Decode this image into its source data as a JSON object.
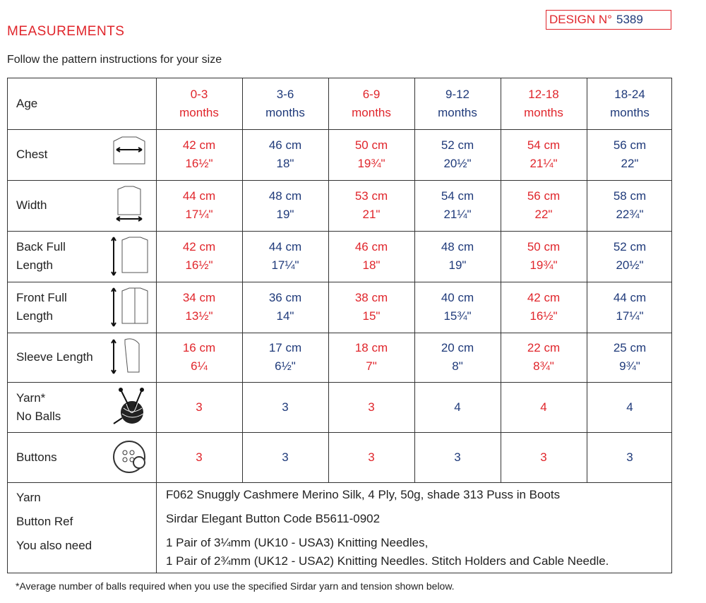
{
  "header": {
    "title": "MEASUREMENTS",
    "design_label": "DESIGN N°",
    "design_number": "5389"
  },
  "intro": "Follow the pattern instructions for your size",
  "table": {
    "corner": "Age",
    "columns": [
      [
        "0-3",
        "months"
      ],
      [
        "3-6",
        "months"
      ],
      [
        "6-9",
        "months"
      ],
      [
        "9-12",
        "months"
      ],
      [
        "12-18",
        "months"
      ],
      [
        "18-24",
        "months"
      ]
    ],
    "rows": [
      {
        "label": [
          "Chest"
        ],
        "values": [
          [
            "42 cm",
            "16½\""
          ],
          [
            "46 cm",
            "18\""
          ],
          [
            "50 cm",
            "19¾\""
          ],
          [
            "52 cm",
            "20½\""
          ],
          [
            "54 cm",
            "21¼\""
          ],
          [
            "56 cm",
            "22\""
          ]
        ]
      },
      {
        "label": [
          "Width"
        ],
        "values": [
          [
            "44 cm",
            "17¼\""
          ],
          [
            "48 cm",
            "19\""
          ],
          [
            "53 cm",
            "21\""
          ],
          [
            "54 cm",
            "21¼\""
          ],
          [
            "56 cm",
            "22\""
          ],
          [
            "58 cm",
            "22¾\""
          ]
        ]
      },
      {
        "label": [
          "Back Full",
          "Length"
        ],
        "values": [
          [
            "42 cm",
            "16½\""
          ],
          [
            "44 cm",
            "17¼\""
          ],
          [
            "46 cm",
            "18\""
          ],
          [
            "48 cm",
            "19\""
          ],
          [
            "50 cm",
            "19¾\""
          ],
          [
            "52 cm",
            "20½\""
          ]
        ]
      },
      {
        "label": [
          "Front Full",
          "Length"
        ],
        "values": [
          [
            "34 cm",
            "13½\""
          ],
          [
            "36 cm",
            "14\""
          ],
          [
            "38 cm",
            "15\""
          ],
          [
            "40 cm",
            "15¾\""
          ],
          [
            "42 cm",
            "16½\""
          ],
          [
            "44 cm",
            "17¼\""
          ]
        ]
      },
      {
        "label": [
          "Sleeve Length"
        ],
        "values": [
          [
            "16 cm",
            "6¼"
          ],
          [
            "17 cm",
            "6½\""
          ],
          [
            "18 cm",
            "7\""
          ],
          [
            "20 cm",
            "8\""
          ],
          [
            "22 cm",
            "8¾\""
          ],
          [
            "25 cm",
            "9¾\""
          ]
        ]
      },
      {
        "label": [
          "Yarn*",
          "No Balls"
        ],
        "values": [
          [
            3
          ],
          [
            3
          ],
          [
            3
          ],
          [
            4
          ],
          [
            4
          ],
          [
            4
          ]
        ]
      },
      {
        "label": [
          "Buttons"
        ],
        "values": [
          [
            3
          ],
          [
            3
          ],
          [
            3
          ],
          [
            3
          ],
          [
            3
          ],
          [
            3
          ]
        ]
      }
    ],
    "footer": [
      {
        "label": "Yarn",
        "lines": [
          "F062 Snuggly Cashmere Merino Silk, 4 Ply, 50g, shade 313 Puss in Boots"
        ]
      },
      {
        "label": "Button Ref",
        "lines": [
          "Sirdar Elegant Button Code B5611-0902"
        ]
      },
      {
        "label": "You also need",
        "lines": [
          "1 Pair of 3¼mm (UK10 - USA3) Knitting Needles,",
          "1 Pair of 2¾mm (UK12 - USA2) Knitting Needles. Stitch Holders and Cable Needle."
        ]
      }
    ]
  },
  "footnote": "*Average number of balls required when you use the specified Sirdar yarn and tension shown below."
}
